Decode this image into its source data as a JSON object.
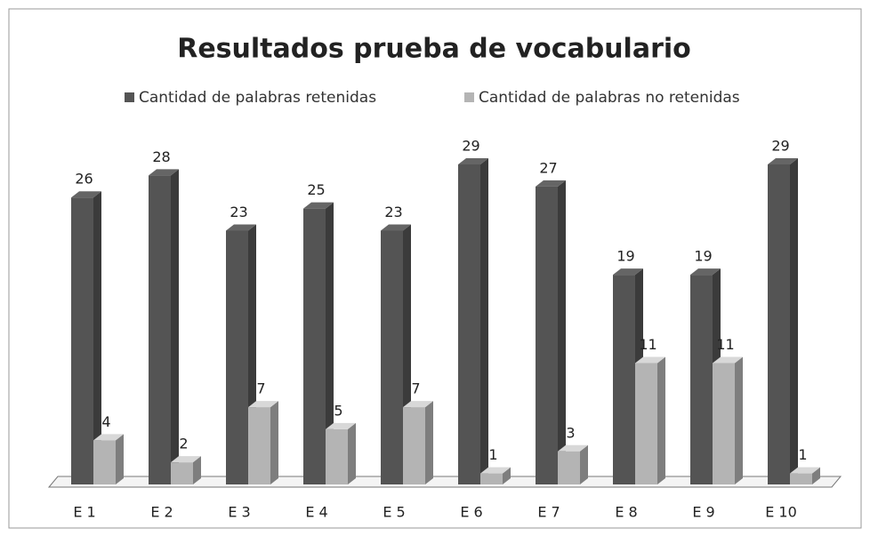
{
  "chart_data": {
    "type": "bar3d",
    "title": "Resultados prueba de vocabulario",
    "categories": [
      "E 1",
      "E 2",
      "E 3",
      "E 4",
      "E 5",
      "E 6",
      "E 7",
      "E 8",
      "E 9",
      "E 10"
    ],
    "series": [
      {
        "name": "Cantidad de palabras retenidas",
        "color": "#545454",
        "values": [
          26,
          28,
          23,
          25,
          23,
          29,
          27,
          19,
          19,
          29
        ]
      },
      {
        "name": "Cantidad de palabras no retenidas",
        "color": "#b4b4b4",
        "values": [
          4,
          2,
          7,
          5,
          7,
          1,
          3,
          11,
          11,
          1
        ]
      }
    ],
    "legend": "top"
  }
}
